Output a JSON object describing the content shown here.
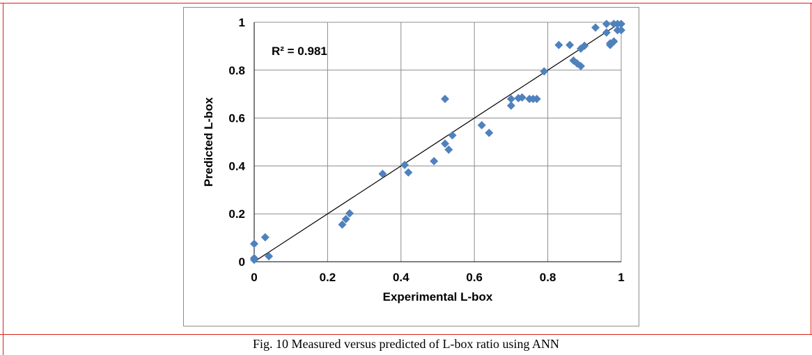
{
  "caption": "Fig. 10 Measured versus predicted of L-box ratio using ANN",
  "chart_data": {
    "type": "scatter",
    "xlabel": "Experimental L-box",
    "ylabel": "Predicted L-box",
    "annotation": "R² = 0.981",
    "xlim": [
      0,
      1
    ],
    "ylim": [
      0,
      1
    ],
    "x_ticks": [
      "0",
      "0.2",
      "0.4",
      "0.6",
      "0.8",
      "1"
    ],
    "y_ticks": [
      "0",
      "0.2",
      "0.4",
      "0.6",
      "0.8",
      "1"
    ],
    "grid": true,
    "marker_color": "#4f81bd",
    "trendline": {
      "x": [
        0,
        1
      ],
      "y": [
        0,
        1
      ],
      "color": "#000000"
    },
    "points": [
      {
        "x": 0.0,
        "y": 0.075
      },
      {
        "x": 0.0,
        "y": 0.015
      },
      {
        "x": 0.0,
        "y": 0.008
      },
      {
        "x": 0.03,
        "y": 0.102
      },
      {
        "x": 0.04,
        "y": 0.023
      },
      {
        "x": 0.24,
        "y": 0.155
      },
      {
        "x": 0.25,
        "y": 0.178
      },
      {
        "x": 0.26,
        "y": 0.202
      },
      {
        "x": 0.35,
        "y": 0.367
      },
      {
        "x": 0.41,
        "y": 0.404
      },
      {
        "x": 0.42,
        "y": 0.373
      },
      {
        "x": 0.49,
        "y": 0.42
      },
      {
        "x": 0.52,
        "y": 0.68
      },
      {
        "x": 0.52,
        "y": 0.493
      },
      {
        "x": 0.53,
        "y": 0.468
      },
      {
        "x": 0.54,
        "y": 0.528
      },
      {
        "x": 0.62,
        "y": 0.57
      },
      {
        "x": 0.64,
        "y": 0.538
      },
      {
        "x": 0.7,
        "y": 0.68
      },
      {
        "x": 0.7,
        "y": 0.652
      },
      {
        "x": 0.72,
        "y": 0.683
      },
      {
        "x": 0.73,
        "y": 0.686
      },
      {
        "x": 0.75,
        "y": 0.68
      },
      {
        "x": 0.76,
        "y": 0.68
      },
      {
        "x": 0.77,
        "y": 0.68
      },
      {
        "x": 0.79,
        "y": 0.795
      },
      {
        "x": 0.83,
        "y": 0.905
      },
      {
        "x": 0.86,
        "y": 0.905
      },
      {
        "x": 0.87,
        "y": 0.84
      },
      {
        "x": 0.88,
        "y": 0.828
      },
      {
        "x": 0.89,
        "y": 0.817
      },
      {
        "x": 0.89,
        "y": 0.89
      },
      {
        "x": 0.9,
        "y": 0.902
      },
      {
        "x": 0.93,
        "y": 0.978
      },
      {
        "x": 0.96,
        "y": 0.993
      },
      {
        "x": 0.96,
        "y": 0.957
      },
      {
        "x": 0.97,
        "y": 0.905
      },
      {
        "x": 0.97,
        "y": 0.912
      },
      {
        "x": 0.98,
        "y": 0.92
      },
      {
        "x": 0.98,
        "y": 0.993
      },
      {
        "x": 0.99,
        "y": 0.993
      },
      {
        "x": 0.99,
        "y": 0.967
      },
      {
        "x": 1.0,
        "y": 0.993
      },
      {
        "x": 1.0,
        "y": 0.967
      }
    ]
  }
}
